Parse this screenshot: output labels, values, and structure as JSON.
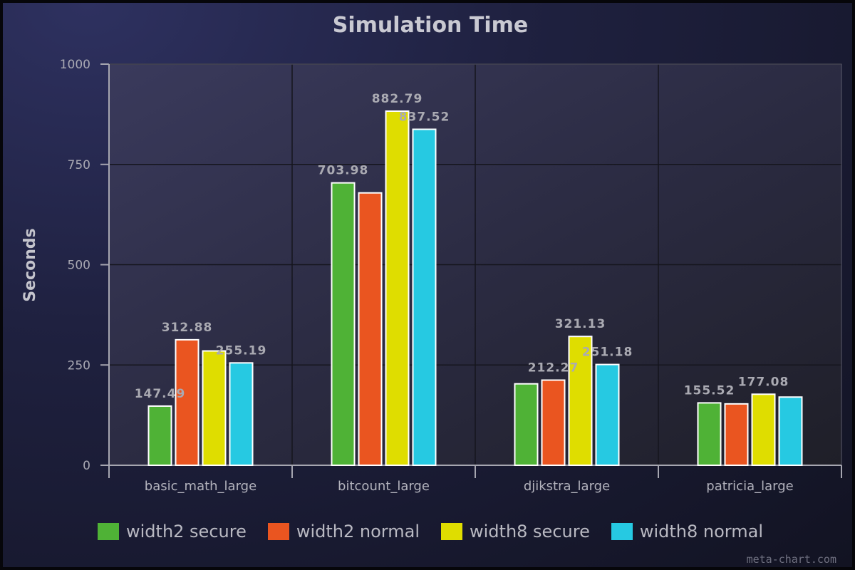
{
  "chart_data": {
    "type": "bar",
    "title": "Simulation Time",
    "xlabel": "",
    "ylabel": "Seconds",
    "ylim": [
      0,
      1000
    ],
    "yticks": [
      0,
      250,
      500,
      750,
      1000
    ],
    "categories": [
      "basic_math_large",
      "bitcount_large",
      "djikstra_large",
      "patricia_large"
    ],
    "series": [
      {
        "name": "width2 secure",
        "color": "#4fb236",
        "values": [
          147.49,
          703.98,
          203.0,
          155.52
        ],
        "labels": [
          "147.49",
          "703.98",
          "",
          "155.52"
        ]
      },
      {
        "name": "width2 normal",
        "color": "#ea5520",
        "values": [
          312.88,
          679.0,
          212.27,
          153.0
        ],
        "labels": [
          "312.88",
          "",
          "212.27",
          ""
        ]
      },
      {
        "name": "width8 secure",
        "color": "#dfdd00",
        "values": [
          285.0,
          882.79,
          321.13,
          177.08
        ],
        "labels": [
          "",
          "882.79",
          "321.13",
          "177.08"
        ]
      },
      {
        "name": "width8 normal",
        "color": "#26c9e2",
        "values": [
          255.19,
          837.52,
          251.18,
          170.0
        ],
        "labels": [
          "255.19",
          "837.52",
          "251.18",
          ""
        ]
      }
    ],
    "grid": true,
    "legend_position": "bottom"
  },
  "credit": "meta-chart.com"
}
